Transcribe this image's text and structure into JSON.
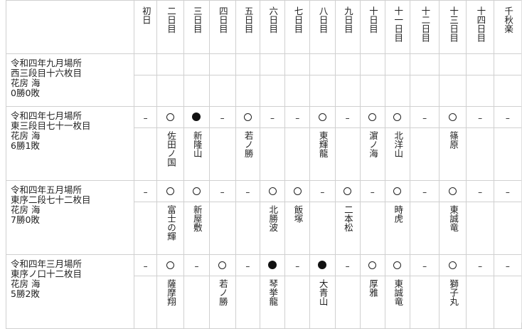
{
  "days": [
    "初日",
    "二日目",
    "三日目",
    "四日目",
    "五日目",
    "六日目",
    "七日目",
    "八日目",
    "九日目",
    "十日目",
    "十一日目",
    "十二日目",
    "十三日目",
    "十四日目",
    "千秋楽"
  ],
  "basho": [
    {
      "label": [
        "令和四年九月場所",
        "西三段目十六枚目",
        "花房 海",
        "0勝0敗"
      ],
      "results": [
        "",
        "",
        "",
        "",
        "",
        "",
        "",
        "",
        "",
        "",
        "",
        "",
        "",
        "",
        ""
      ],
      "opponents": [
        "",
        "",
        "",
        "",
        "",
        "",
        "",
        "",
        "",
        "",
        "",
        "",
        "",
        "",
        ""
      ]
    },
    {
      "label": [
        "令和四年七月場所",
        "東三段目七十一枚目",
        "花房 海",
        "6勝1敗"
      ],
      "results": [
        "–",
        "○",
        "●",
        "–",
        "○",
        "–",
        "–",
        "○",
        "–",
        "○",
        "○",
        "–",
        "○",
        "–",
        "–"
      ],
      "opponents": [
        "",
        "佐田ノ国",
        "新隆山",
        "",
        "若ノ勝",
        "",
        "",
        "東輝龍",
        "",
        "濵ノ海",
        "北洋山",
        "",
        "篠原",
        "",
        ""
      ]
    },
    {
      "label": [
        "令和四年五月場所",
        "東序二段七十二枚目",
        "花房 海",
        "7勝0敗"
      ],
      "results": [
        "–",
        "○",
        "○",
        "–",
        "–",
        "○",
        "○",
        "–",
        "○",
        "–",
        "○",
        "–",
        "○",
        "–",
        "–"
      ],
      "opponents": [
        "",
        "富士の輝",
        "新屋敷",
        "",
        "",
        "北勝波",
        "飯塚",
        "",
        "二本松",
        "",
        "時虎",
        "",
        "東誠竜",
        "",
        ""
      ]
    },
    {
      "label": [
        "令和四年三月場所",
        "東序ノ口十二枚目",
        "花房 海",
        "5勝2敗"
      ],
      "results": [
        "–",
        "○",
        "–",
        "○",
        "–",
        "●",
        "–",
        "●",
        "–",
        "○",
        "○",
        "–",
        "○",
        "–",
        "–"
      ],
      "opponents": [
        "",
        "薩摩翔",
        "",
        "若ノ勝",
        "",
        "琴挙龍",
        "",
        "大青山",
        "",
        "厚雅",
        "東誠竜",
        "",
        "獅子丸",
        "",
        ""
      ]
    }
  ]
}
